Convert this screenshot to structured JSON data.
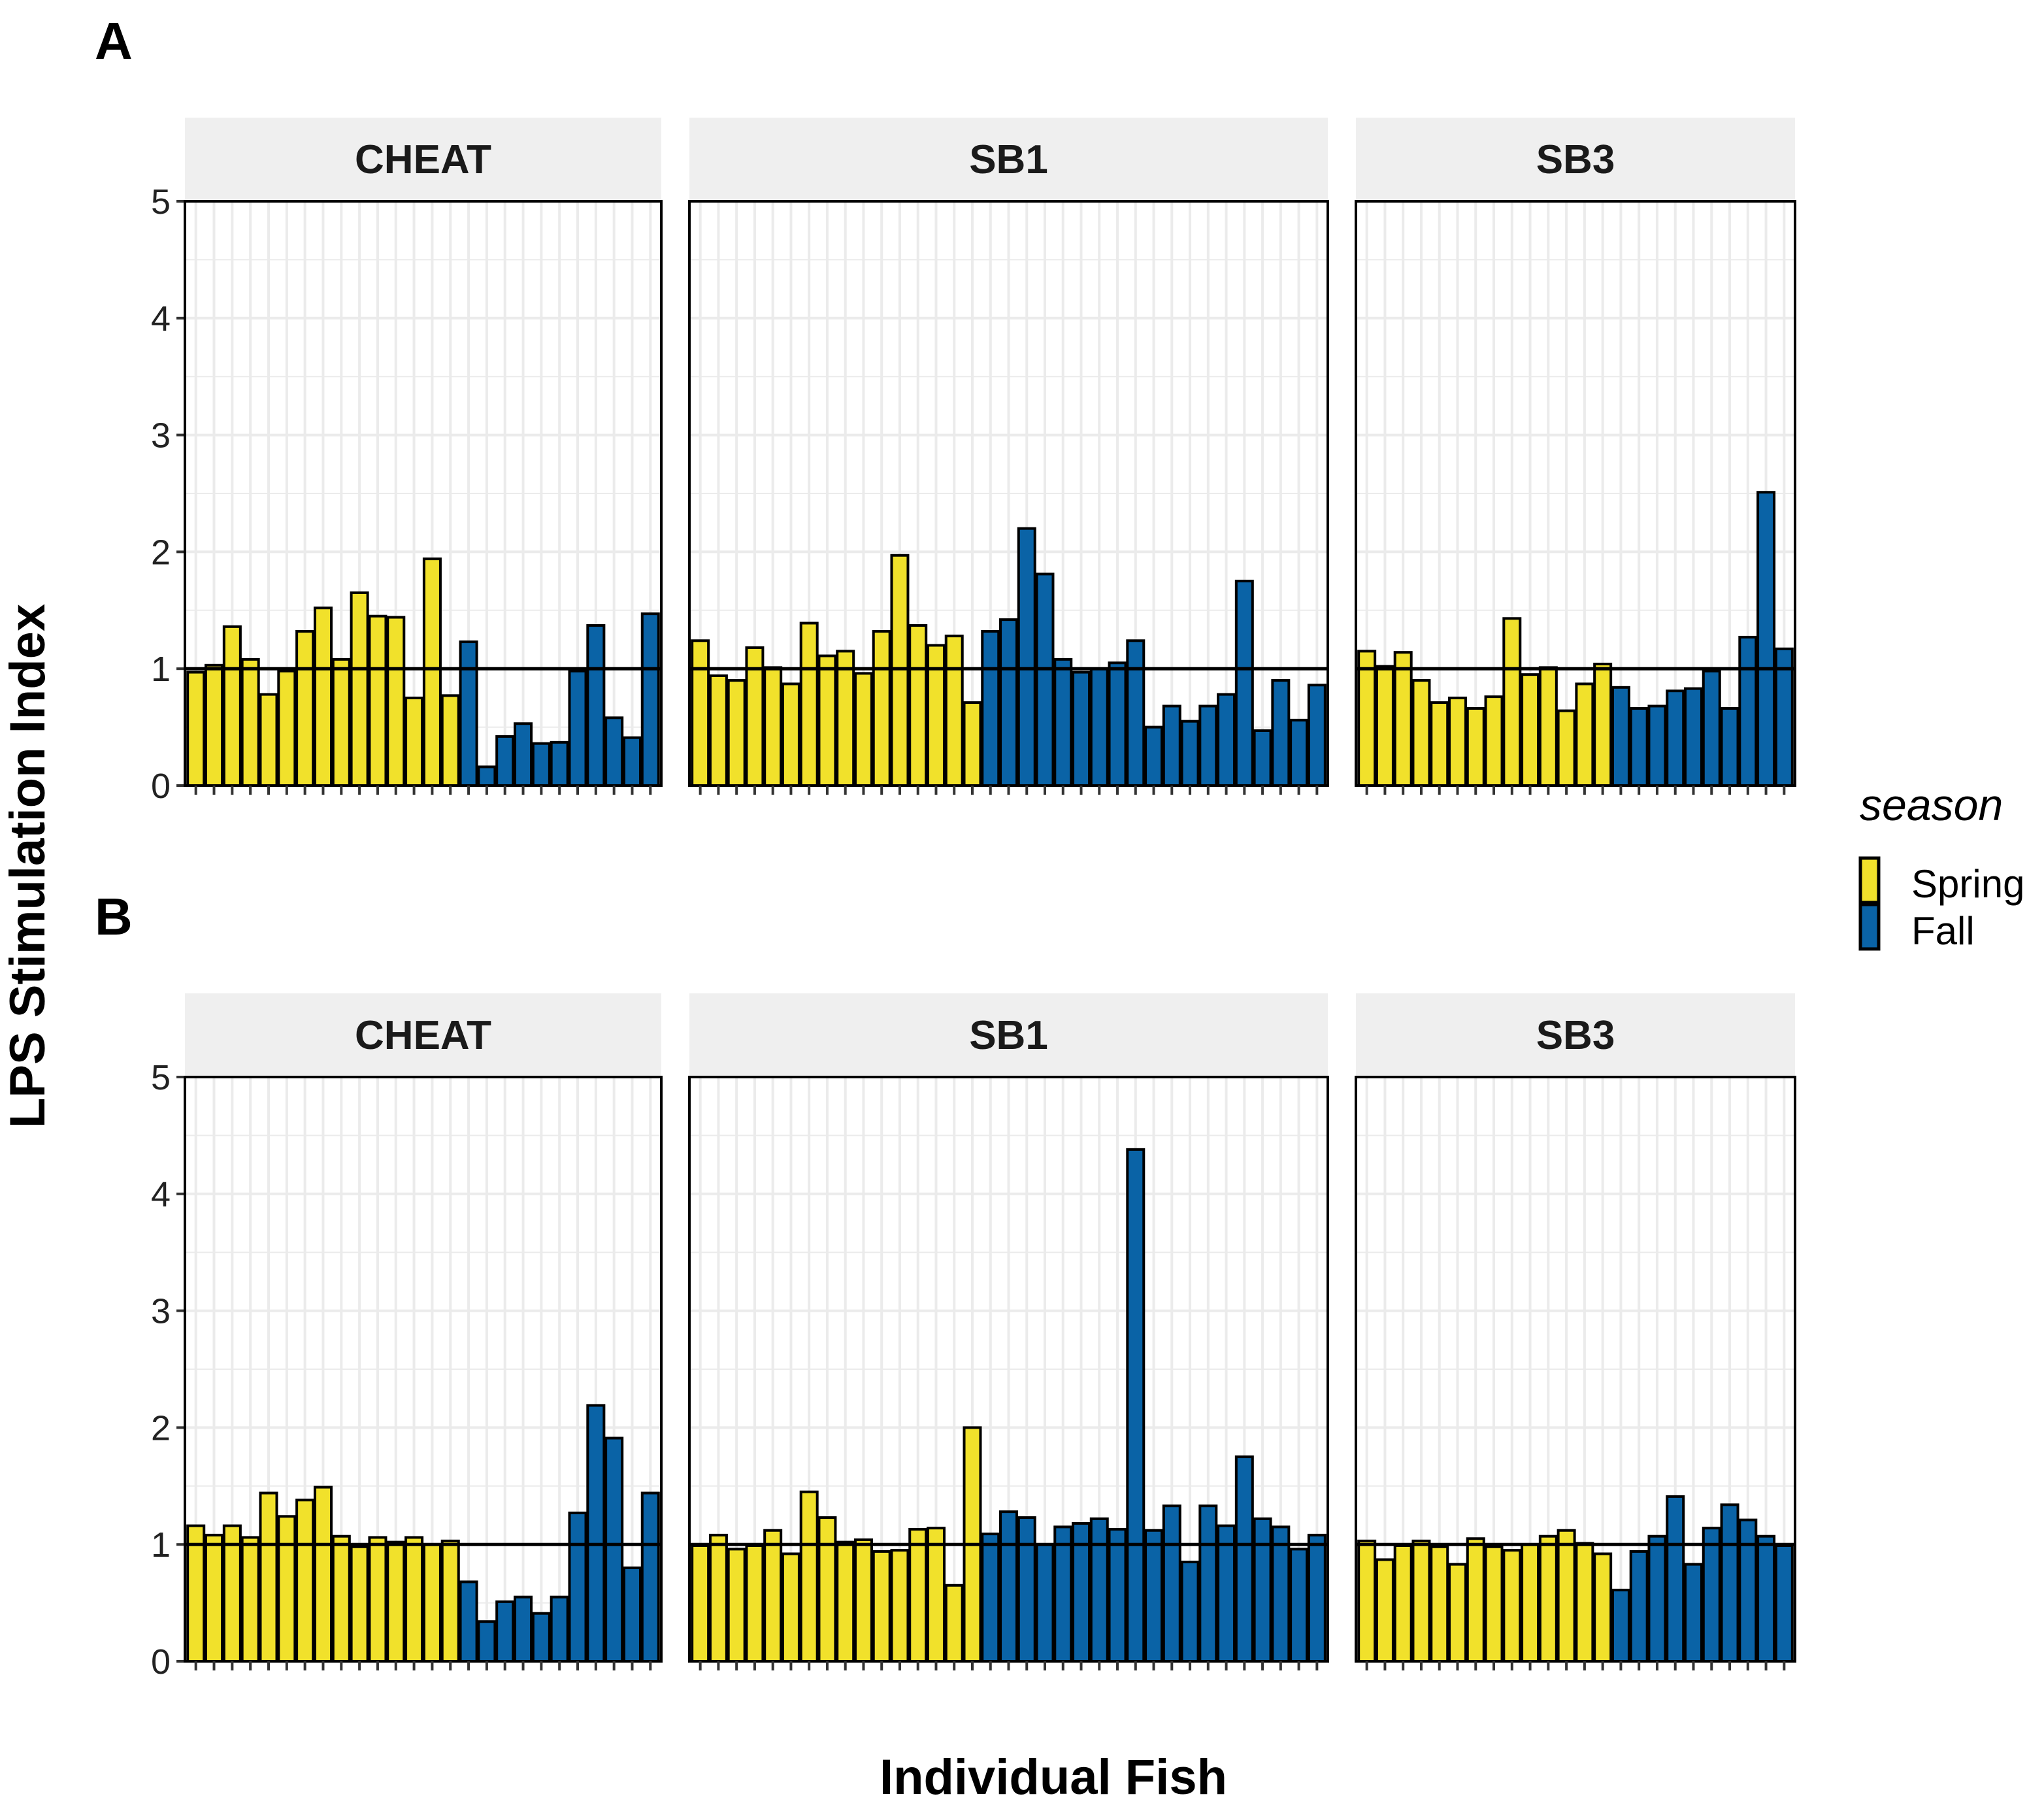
{
  "chart_data": {
    "type": "bar",
    "ylabel": "LPS Stimulation Index",
    "xlabel": "Individual Fish",
    "ylim": [
      0,
      5
    ],
    "yticks": [
      "0",
      "1",
      "2",
      "3",
      "4",
      "5"
    ],
    "reference_line": 1,
    "grid": true,
    "legend": {
      "title": "season",
      "position": "right",
      "entries": [
        {
          "label": "Spring",
          "color": "#F1E12B"
        },
        {
          "label": "Fall",
          "color": "#0A63A6"
        }
      ]
    },
    "panels": [
      {
        "label": "A",
        "facets": [
          {
            "name": "CHEAT",
            "spring": [
              0.97,
              1.03,
              1.36,
              1.08,
              0.78,
              0.98,
              1.32,
              1.52,
              1.08,
              1.65,
              1.45,
              1.44,
              0.75,
              1.94,
              0.77
            ],
            "fall": [
              1.23,
              0.16,
              0.42,
              0.53,
              0.36,
              0.37,
              0.98,
              1.37,
              0.58,
              0.41,
              1.47
            ]
          },
          {
            "name": "SB1",
            "spring": [
              1.24,
              0.94,
              0.9,
              1.18,
              1.01,
              0.87,
              1.39,
              1.11,
              1.15,
              0.96,
              1.32,
              1.97,
              1.37,
              1.2,
              1.28,
              0.71
            ],
            "fall": [
              1.32,
              1.42,
              2.2,
              1.81,
              1.08,
              0.97,
              1.0,
              1.05,
              1.24,
              0.5,
              0.68,
              0.55,
              0.68,
              0.78,
              1.75,
              0.47,
              0.9,
              0.56,
              0.86
            ]
          },
          {
            "name": "SB3",
            "spring": [
              1.15,
              1.02,
              1.14,
              0.9,
              0.71,
              0.75,
              0.66,
              0.76,
              1.43,
              0.95,
              1.01,
              0.64,
              0.87,
              1.04
            ],
            "fall": [
              0.84,
              0.66,
              0.68,
              0.81,
              0.83,
              0.98,
              0.66,
              1.27,
              2.51,
              1.17
            ]
          }
        ]
      },
      {
        "label": "B",
        "facets": [
          {
            "name": "CHEAT",
            "spring": [
              1.16,
              1.08,
              1.16,
              1.06,
              1.44,
              1.24,
              1.38,
              1.49,
              1.07,
              0.98,
              1.06,
              1.02,
              1.06,
              1.0,
              1.03
            ],
            "fall": [
              0.68,
              0.34,
              0.51,
              0.55,
              0.41,
              0.55,
              1.27,
              2.19,
              1.91,
              0.8,
              1.44
            ]
          },
          {
            "name": "SB1",
            "spring": [
              0.99,
              1.08,
              0.96,
              0.99,
              1.12,
              0.92,
              1.45,
              1.23,
              1.02,
              1.04,
              0.94,
              0.95,
              1.13,
              1.14,
              0.65,
              2.0
            ],
            "fall": [
              1.09,
              1.28,
              1.23,
              1.0,
              1.15,
              1.18,
              1.22,
              1.13,
              4.38,
              1.12,
              1.33,
              0.85,
              1.33,
              1.16,
              1.75,
              1.22,
              1.15,
              0.96,
              1.08
            ]
          },
          {
            "name": "SB3",
            "spring": [
              1.03,
              0.87,
              0.99,
              1.03,
              0.98,
              0.83,
              1.05,
              0.98,
              0.95,
              1.0,
              1.07,
              1.12,
              1.01,
              0.92
            ],
            "fall": [
              0.61,
              0.94,
              1.07,
              1.41,
              0.83,
              1.14,
              1.34,
              1.21,
              1.07,
              0.99
            ]
          }
        ]
      }
    ]
  }
}
